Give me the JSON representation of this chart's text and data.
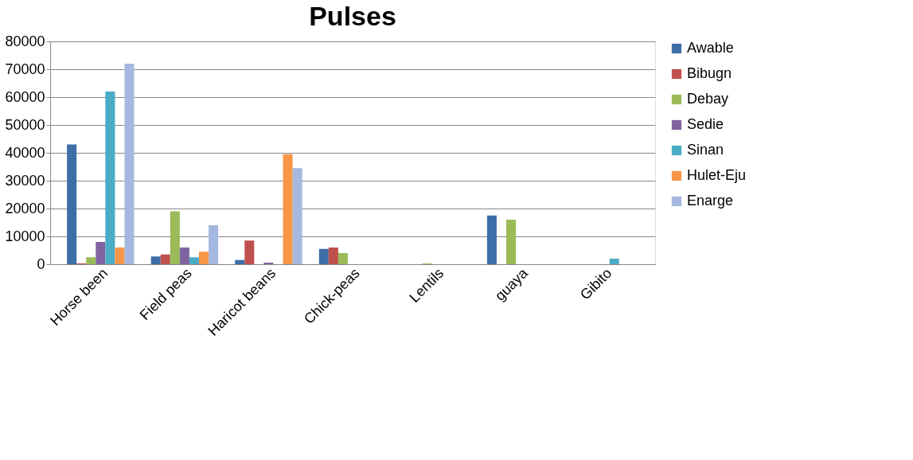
{
  "chart_data": {
    "type": "bar",
    "title": "Pulses",
    "categories": [
      "Horse been",
      "Field peas",
      "Haricot beans",
      "Chick-peas",
      "Lentils",
      "guaya",
      "Gibito"
    ],
    "series": [
      {
        "name": "Awable",
        "color": "#3e6ea8",
        "values": [
          43000,
          2800,
          1500,
          5500,
          null,
          17500,
          null
        ]
      },
      {
        "name": "Bibugn",
        "color": "#c0504d",
        "values": [
          300,
          3500,
          8500,
          6000,
          null,
          null,
          null
        ]
      },
      {
        "name": "Debay",
        "color": "#9bbb59",
        "values": [
          2500,
          19000,
          null,
          4000,
          300,
          16000,
          null
        ]
      },
      {
        "name": "Sedie",
        "color": "#8064a2",
        "values": [
          8000,
          6000,
          600,
          null,
          null,
          null,
          null
        ]
      },
      {
        "name": "Sinan",
        "color": "#4bacc6",
        "values": [
          62000,
          2500,
          null,
          null,
          null,
          null,
          2000
        ]
      },
      {
        "name": "Hulet-Eju",
        "color": "#f79646",
        "values": [
          6000,
          4500,
          39500,
          null,
          null,
          null,
          null
        ]
      },
      {
        "name": "Enarge",
        "color": "#a5b8e0",
        "values": [
          72000,
          14000,
          34500,
          null,
          null,
          null,
          null
        ]
      }
    ],
    "ylim": [
      0,
      80000
    ],
    "yticks": [
      0,
      10000,
      20000,
      30000,
      40000,
      50000,
      60000,
      70000,
      80000
    ],
    "grid": "y",
    "legend": "right"
  }
}
